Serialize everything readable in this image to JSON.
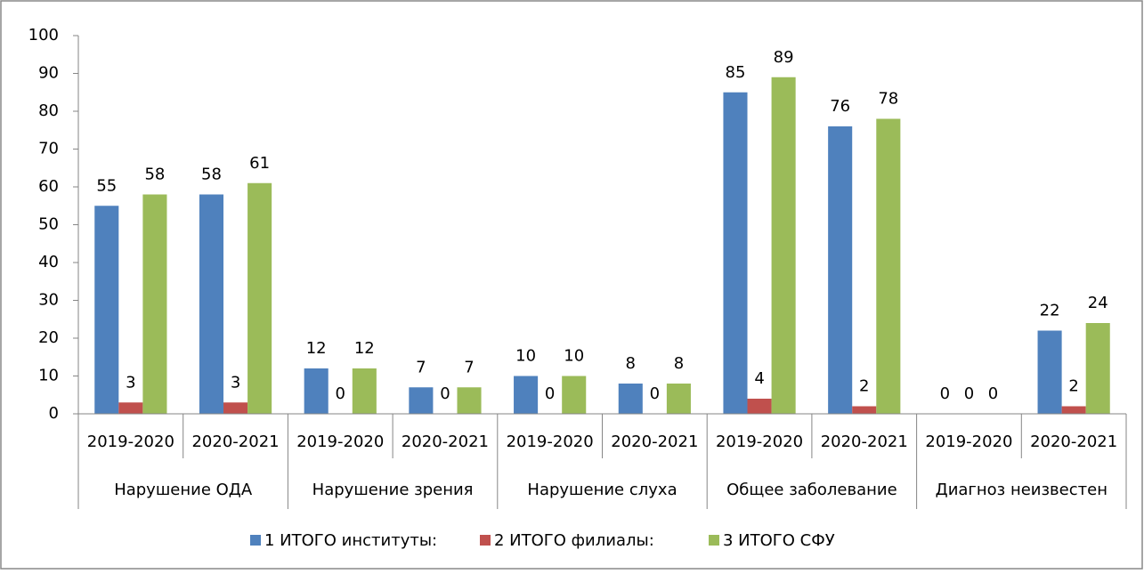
{
  "chart_data": {
    "type": "bar",
    "categories": [
      "2019-2020",
      "2020-2021",
      "2019-2020",
      "2020-2021",
      "2019-2020",
      "2020-2021",
      "2019-2020",
      "2020-2021",
      "2019-2020",
      "2020-2021"
    ],
    "category_groups": [
      "Нарушение ОДА",
      "Нарушение зрения",
      "Нарушение слуха",
      "Общее заболевание",
      "Диагноз неизвестен"
    ],
    "series": [
      {
        "name": "1 ИТОГО институты:",
        "color": "#4f81bd",
        "values": [
          55,
          58,
          12,
          7,
          10,
          8,
          85,
          76,
          0,
          22
        ]
      },
      {
        "name": "2 ИТОГО филиалы:",
        "color": "#c0504d",
        "values": [
          3,
          3,
          0,
          0,
          0,
          0,
          4,
          2,
          0,
          2
        ]
      },
      {
        "name": "3 ИТОГО СФУ",
        "color": "#9bbb59",
        "values": [
          58,
          61,
          12,
          7,
          10,
          8,
          89,
          78,
          0,
          24
        ]
      }
    ],
    "ylim": [
      0,
      100
    ],
    "yticks": [
      0,
      10,
      20,
      30,
      40,
      50,
      60,
      70,
      80,
      90,
      100
    ],
    "grid": false,
    "legend": "bottom"
  }
}
